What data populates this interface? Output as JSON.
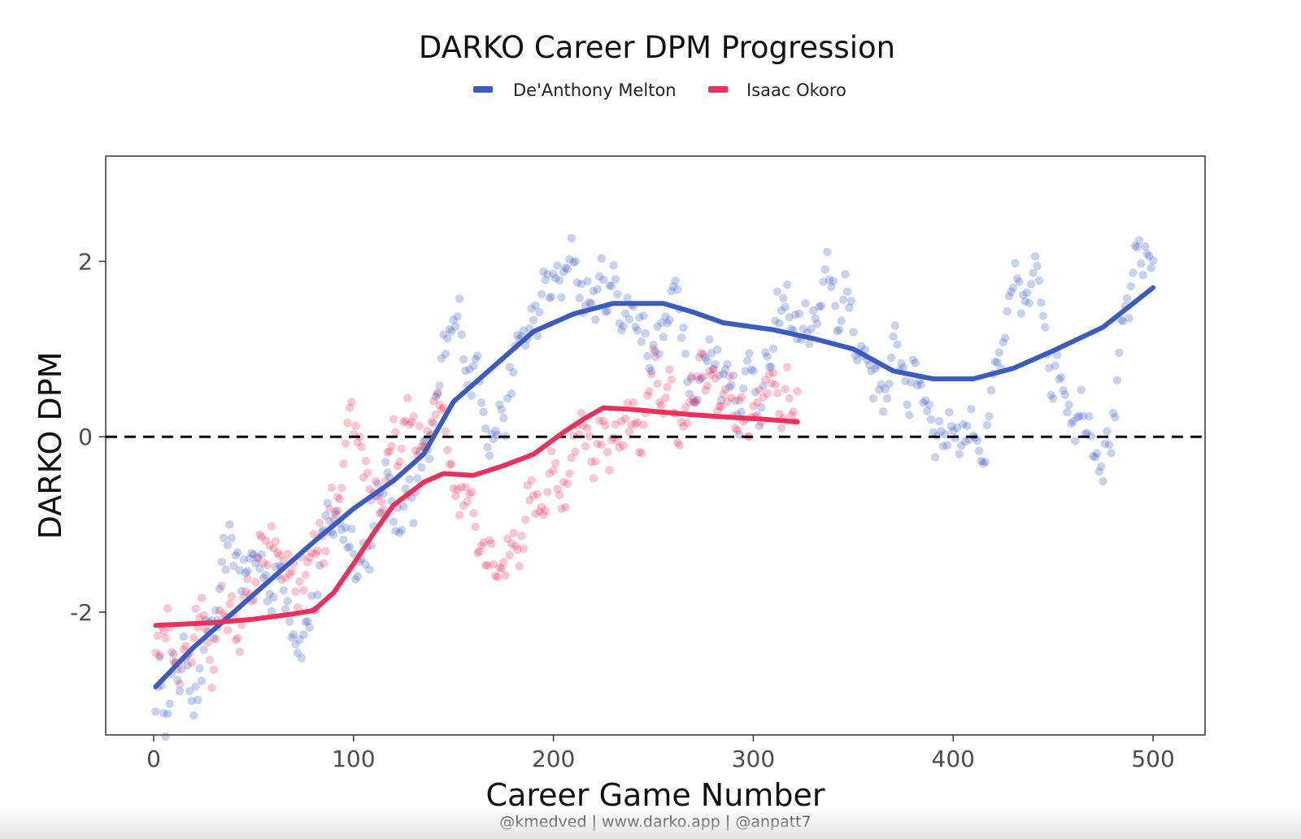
{
  "chart_data": {
    "type": "scatter",
    "title": "DARKO Career DPM Progression",
    "xlabel": "Career Game Number",
    "ylabel": "DARKO DPM",
    "caption": "@kmedved | www.darko.app | @anpatt7",
    "xlim": [
      -24,
      526
    ],
    "ylim": [
      -3.4,
      3.2
    ],
    "x_ticks": [
      0,
      100,
      200,
      300,
      400,
      500
    ],
    "y_ticks": [
      -2,
      0,
      2
    ],
    "reference_line": {
      "y": 0,
      "style": "dashed",
      "color": "#000000"
    },
    "grid": false,
    "legend_position": "top",
    "series": [
      {
        "name": "De'Anthony Melton",
        "color": "#3a5bbf",
        "smooth": [
          [
            1,
            -2.85
          ],
          [
            20,
            -2.4
          ],
          [
            40,
            -2.0
          ],
          [
            60,
            -1.6
          ],
          [
            80,
            -1.2
          ],
          [
            100,
            -0.82
          ],
          [
            120,
            -0.5
          ],
          [
            135,
            -0.2
          ],
          [
            150,
            0.4
          ],
          [
            165,
            0.7
          ],
          [
            180,
            1.0
          ],
          [
            190,
            1.2
          ],
          [
            210,
            1.4
          ],
          [
            230,
            1.52
          ],
          [
            255,
            1.52
          ],
          [
            270,
            1.42
          ],
          [
            285,
            1.3
          ],
          [
            310,
            1.22
          ],
          [
            330,
            1.12
          ],
          [
            350,
            1.0
          ],
          [
            370,
            0.75
          ],
          [
            390,
            0.66
          ],
          [
            410,
            0.66
          ],
          [
            430,
            0.78
          ],
          [
            450,
            0.98
          ],
          [
            475,
            1.25
          ],
          [
            500,
            1.7
          ]
        ]
      },
      {
        "name": "Isaac Okoro",
        "color": "#e8315b",
        "smooth": [
          [
            1,
            -2.15
          ],
          [
            30,
            -2.12
          ],
          [
            50,
            -2.08
          ],
          [
            60,
            -2.05
          ],
          [
            70,
            -2.02
          ],
          [
            80,
            -1.98
          ],
          [
            90,
            -1.78
          ],
          [
            100,
            -1.45
          ],
          [
            110,
            -1.1
          ],
          [
            120,
            -0.78
          ],
          [
            135,
            -0.52
          ],
          [
            145,
            -0.42
          ],
          [
            160,
            -0.44
          ],
          [
            175,
            -0.33
          ],
          [
            190,
            -0.2
          ],
          [
            205,
            0.05
          ],
          [
            215,
            0.2
          ],
          [
            225,
            0.33
          ],
          [
            240,
            0.31
          ],
          [
            255,
            0.28
          ],
          [
            270,
            0.25
          ],
          [
            290,
            0.22
          ],
          [
            305,
            0.2
          ],
          [
            322,
            0.17
          ]
        ]
      }
    ]
  }
}
